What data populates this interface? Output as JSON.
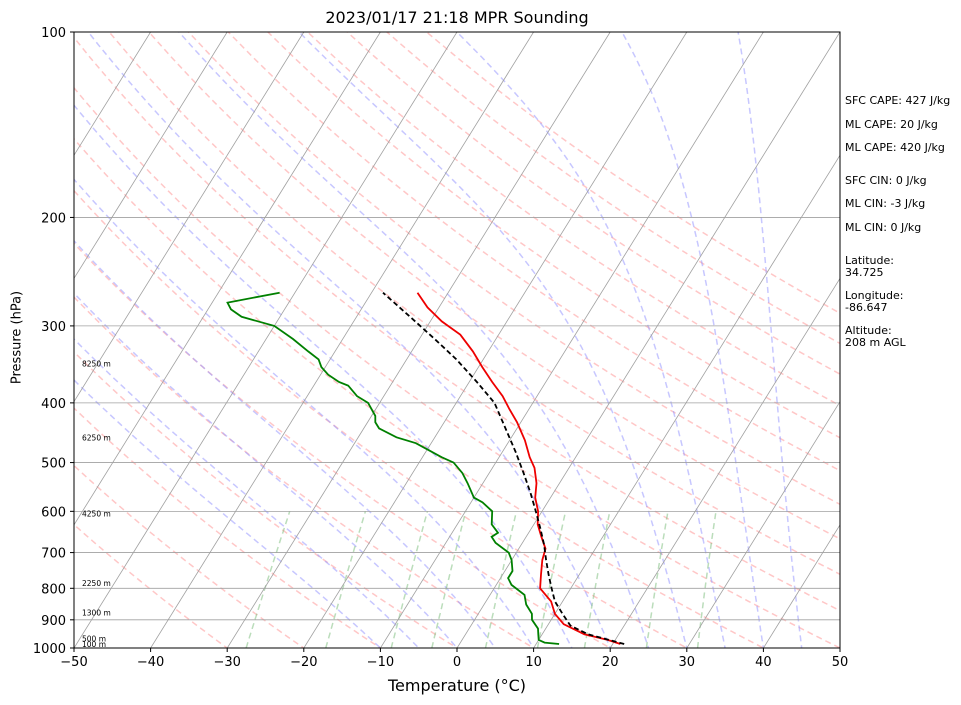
{
  "title": "2023/01/17 21:18 MPR Sounding",
  "colors": {
    "temperature": "#ee0000",
    "dewpoint": "#008000",
    "parcel": "#000000",
    "isotherm": "#a0a0a0",
    "dry_adiabat": "#ff9999",
    "moist_adiabat": "#9999ff",
    "mixing_ratio": "#77bb77"
  },
  "side_panel": {
    "sfc_cape": "SFC CAPE: 427 J/kg",
    "ml_cape_1": "ML CAPE: 20 J/kg",
    "ml_cape_2": "ML CAPE: 420 J/kg",
    "sfc_cin": "SFC CIN: 0 J/kg",
    "ml_cin_1": "ML CIN: -3 J/kg",
    "ml_cin_2": "ML CIN: 0 J/kg",
    "lat_label": "Latitude:",
    "lat_value": "34.725",
    "lon_label": "Longitude:",
    "lon_value": "-86.647",
    "alt_label": "Altitude:",
    "alt_value": "208 m AGL"
  },
  "chart_data": {
    "type": "line",
    "title": "2023/01/17 21:18 MPR Sounding",
    "xlabel": "Temperature (°C)",
    "ylabel": "Pressure (hPa)",
    "xlim": [
      -50,
      50
    ],
    "ylim": [
      1000,
      100
    ],
    "y_scale": "log",
    "grid": true,
    "x_ticks": [
      -50,
      -40,
      -30,
      -20,
      -10,
      0,
      10,
      20,
      30,
      40,
      50
    ],
    "x_tick_labels": [
      "−50",
      "−40",
      "−30",
      "−20",
      "−10",
      "0",
      "10",
      "20",
      "30",
      "40",
      "50"
    ],
    "y_ticks": [
      1000,
      900,
      800,
      700,
      600,
      500,
      400,
      300,
      200,
      100
    ],
    "y_tick_labels": [
      "1000",
      "900",
      "800",
      "700",
      "600",
      "500",
      "400",
      "300",
      "200",
      "100"
    ],
    "height_labels": [
      {
        "p": 985,
        "text": "100 m"
      },
      {
        "p": 965,
        "text": "500 m"
      },
      {
        "p": 875,
        "text": "1300 m"
      },
      {
        "p": 785,
        "text": "2250 m"
      },
      {
        "p": 605,
        "text": "4250 m"
      },
      {
        "p": 455,
        "text": "6250 m"
      },
      {
        "p": 345,
        "text": "8250 m"
      }
    ],
    "series": [
      {
        "name": "Temperature",
        "points": [
          [
            21.0,
            985
          ],
          [
            19.0,
            970
          ],
          [
            15.5,
            950
          ],
          [
            12.0,
            915
          ],
          [
            10.0,
            880
          ],
          [
            8.5,
            840
          ],
          [
            6.0,
            800
          ],
          [
            5.0,
            760
          ],
          [
            4.0,
            720
          ],
          [
            3.5,
            690
          ],
          [
            2.0,
            660
          ],
          [
            0.5,
            630
          ],
          [
            -0.5,
            600
          ],
          [
            -2.0,
            570
          ],
          [
            -3.0,
            540
          ],
          [
            -4.5,
            510
          ],
          [
            -6.0,
            490
          ],
          [
            -8.0,
            460
          ],
          [
            -10.5,
            430
          ],
          [
            -12.5,
            410
          ],
          [
            -14.5,
            390
          ],
          [
            -17.0,
            370
          ],
          [
            -19.5,
            350
          ],
          [
            -22.0,
            330
          ],
          [
            -25.0,
            310
          ],
          [
            -28.5,
            295
          ],
          [
            -31.5,
            280
          ],
          [
            -34.0,
            265
          ]
        ]
      },
      {
        "name": "Dewpoint",
        "points": [
          [
            13.0,
            985
          ],
          [
            11.0,
            980
          ],
          [
            10.0,
            970
          ],
          [
            9.5,
            950
          ],
          [
            9.0,
            930
          ],
          [
            7.5,
            900
          ],
          [
            7.0,
            880
          ],
          [
            5.5,
            850
          ],
          [
            4.5,
            820
          ],
          [
            2.0,
            790
          ],
          [
            1.0,
            770
          ],
          [
            1.0,
            750
          ],
          [
            0.0,
            720
          ],
          [
            -1.0,
            700
          ],
          [
            -3.5,
            675
          ],
          [
            -4.5,
            660
          ],
          [
            -4.0,
            650
          ],
          [
            -5.5,
            630
          ],
          [
            -6.5,
            600
          ],
          [
            -8.5,
            580
          ],
          [
            -10.0,
            570
          ],
          [
            -12.0,
            540
          ],
          [
            -13.5,
            520
          ],
          [
            -15.5,
            500
          ],
          [
            -17.5,
            490
          ],
          [
            -22.0,
            465
          ],
          [
            -25.0,
            455
          ],
          [
            -28.0,
            440
          ],
          [
            -29.0,
            430
          ],
          [
            -29.5,
            420
          ],
          [
            -31.5,
            400
          ],
          [
            -33.5,
            390
          ],
          [
            -35.5,
            375
          ],
          [
            -37.0,
            370
          ],
          [
            -39.0,
            360
          ],
          [
            -40.5,
            350
          ],
          [
            -41.5,
            340
          ],
          [
            -43.5,
            330
          ],
          [
            -46.5,
            315
          ],
          [
            -50.0,
            300
          ],
          [
            -55.0,
            290
          ],
          [
            -57.0,
            282
          ],
          [
            -58.0,
            275
          ],
          [
            -52.0,
            265
          ]
        ]
      },
      {
        "name": "Parcel",
        "points": [
          [
            21.5,
            985
          ],
          [
            16.0,
            950
          ],
          [
            13.0,
            920
          ],
          [
            11.0,
            880
          ],
          [
            9.0,
            840
          ],
          [
            7.5,
            800
          ],
          [
            6.0,
            760
          ],
          [
            4.5,
            720
          ],
          [
            3.0,
            680
          ],
          [
            1.2,
            640
          ],
          [
            -0.8,
            600
          ],
          [
            -3.0,
            560
          ],
          [
            -5.5,
            520
          ],
          [
            -8.3,
            480
          ],
          [
            -11.5,
            440
          ],
          [
            -15.0,
            400
          ],
          [
            -19.0,
            370
          ],
          [
            -23.5,
            340
          ],
          [
            -28.0,
            315
          ],
          [
            -33.0,
            290
          ],
          [
            -38.5,
            265
          ]
        ]
      }
    ],
    "background": {
      "isotherms_C": [
        -120,
        -110,
        -100,
        -90,
        -80,
        -70,
        -60,
        -50,
        -40,
        -30,
        -20,
        -10,
        0,
        10,
        20,
        30,
        40,
        50
      ],
      "dry_adiabats_C": [
        -30,
        -20,
        -10,
        0,
        10,
        20,
        30,
        40,
        50,
        60,
        70,
        80,
        90,
        100,
        110,
        120,
        130,
        140,
        150
      ],
      "moist_adiabats_C": [
        -10,
        -5,
        0,
        5,
        10,
        15,
        20,
        25,
        30,
        35,
        40,
        45
      ],
      "mixing_ratio_gkg": [
        0.4,
        1,
        2,
        3,
        5,
        8,
        12,
        20,
        30
      ]
    }
  }
}
